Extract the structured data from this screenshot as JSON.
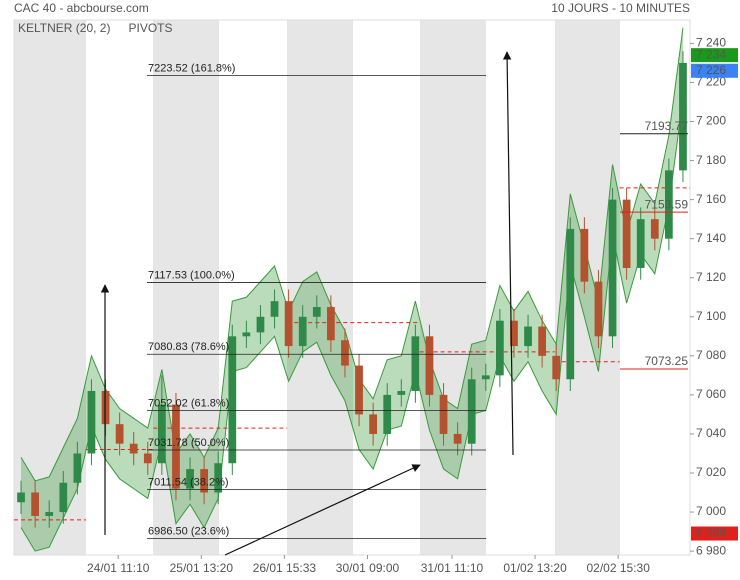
{
  "chart_data": {
    "type": "candlestick",
    "title": "CAC 40 - abcbourse.com",
    "subtitle": "10 JOURS - 10 MINUTES",
    "legend": [
      {
        "name": "KELTNER (20, 2)",
        "color": "#3a9a3a"
      },
      {
        "name": "PIVOTS",
        "color": "#555555"
      }
    ],
    "x": [
      0,
      1,
      2,
      3,
      4,
      5,
      6,
      7,
      8,
      9,
      10,
      11,
      12,
      13,
      14,
      15,
      16,
      17,
      18,
      19,
      20,
      21,
      22,
      23,
      24,
      25,
      26,
      27,
      28,
      29,
      30,
      31,
      32,
      33,
      34,
      35,
      36,
      37,
      38,
      39,
      40,
      41,
      42,
      43,
      44,
      45,
      46,
      47
    ],
    "open": [
      7005,
      7010,
      6998,
      7000,
      7015,
      7030,
      7062,
      7045,
      7035,
      7030,
      7025,
      7055,
      7012,
      7022,
      7010,
      7025,
      7090,
      7092,
      7100,
      7108,
      7085,
      7100,
      7105,
      7088,
      7075,
      7050,
      7040,
      7060,
      7062,
      7090,
      7060,
      7040,
      7035,
      7068,
      7070,
      7098,
      7085,
      7095,
      7080,
      7068,
      7145,
      7118,
      7090,
      7160,
      7125,
      7150,
      7140,
      7175
    ],
    "high": [
      7016,
      7016,
      7006,
      7021,
      7036,
      7068,
      7068,
      7051,
      7041,
      7036,
      7070,
      7061,
      7028,
      7028,
      7031,
      7096,
      7098,
      7106,
      7114,
      7114,
      7106,
      7111,
      7111,
      7094,
      7081,
      7056,
      7066,
      7068,
      7096,
      7096,
      7066,
      7046,
      7074,
      7076,
      7104,
      7104,
      7101,
      7101,
      7086,
      7151,
      7151,
      7124,
      7166,
      7166,
      7156,
      7156,
      7181,
      7236
    ],
    "low": [
      6999,
      6992,
      6992,
      6994,
      7009,
      7024,
      7039,
      7029,
      7024,
      7019,
      7019,
      7006,
      7006,
      7004,
      7004,
      7019,
      7084,
      7086,
      7094,
      7079,
      7079,
      7094,
      7082,
      7069,
      7044,
      7034,
      7034,
      7054,
      7056,
      7054,
      7034,
      7029,
      7029,
      7062,
      7064,
      7079,
      7079,
      7074,
      7062,
      7062,
      7112,
      7084,
      7084,
      7119,
      7119,
      7134,
      7134,
      7169
    ],
    "close": [
      7010,
      6998,
      7000,
      7015,
      7030,
      7062,
      7045,
      7035,
      7030,
      7025,
      7055,
      7012,
      7022,
      7010,
      7025,
      7090,
      7092,
      7100,
      7108,
      7085,
      7100,
      7105,
      7088,
      7075,
      7050,
      7040,
      7060,
      7062,
      7090,
      7060,
      7040,
      7035,
      7068,
      7070,
      7098,
      7085,
      7095,
      7080,
      7068,
      7145,
      7118,
      7090,
      7160,
      7125,
      7150,
      7140,
      7175,
      7230
    ],
    "up_color": "#2f8a4a",
    "down_color": "#b4512f",
    "keltner": {
      "color": "#3a9a3a",
      "upper": [
        7028,
        7016,
        7018,
        7033,
        7048,
        7080,
        7063,
        7053,
        7048,
        7043,
        7073,
        7030,
        7040,
        7028,
        7043,
        7108,
        7110,
        7118,
        7126,
        7103,
        7118,
        7123,
        7106,
        7093,
        7068,
        7058,
        7078,
        7080,
        7108,
        7078,
        7058,
        7053,
        7086,
        7088,
        7116,
        7103,
        7113,
        7098,
        7086,
        7163,
        7136,
        7108,
        7178,
        7143,
        7168,
        7158,
        7193,
        7248
      ],
      "lower": [
        6992,
        6980,
        6982,
        6997,
        7012,
        7044,
        7027,
        7017,
        7012,
        7007,
        7037,
        6994,
        7004,
        6992,
        7007,
        7072,
        7074,
        7082,
        7090,
        7067,
        7082,
        7087,
        7070,
        7057,
        7032,
        7022,
        7042,
        7044,
        7072,
        7042,
        7022,
        7017,
        7050,
        7052,
        7080,
        7067,
        7077,
        7062,
        7050,
        7127,
        7100,
        7072,
        7142,
        7107,
        7132,
        7122,
        7157,
        7212
      ]
    },
    "fibonacci": [
      {
        "value": 7223.52,
        "label": "7223.52  (161.8%)"
      },
      {
        "value": 7117.53,
        "label": "7117.53  (100.0%)"
      },
      {
        "value": 7080.83,
        "label": "7080.83  (78.6%)"
      },
      {
        "value": 7052.02,
        "label": "7052.02  (61.8%)"
      },
      {
        "value": 7031.78,
        "label": "7031.78  (50.0%)"
      },
      {
        "value": 7011.54,
        "label": "7011.54  (38.2%)"
      },
      {
        "value": 6986.5,
        "label": "6986.50  (23.6%)"
      }
    ],
    "pivot_segments": [
      {
        "x": [
          -0.5,
          4.6
        ],
        "value": 6996
      },
      {
        "x": [
          4.6,
          9.4
        ],
        "value": 7032
      },
      {
        "x": [
          9.4,
          18.9
        ],
        "value": 7043
      },
      {
        "x": [
          18.9,
          28.3
        ],
        "value": 7097
      },
      {
        "x": [
          28.3,
          37.9
        ],
        "value": 7082
      },
      {
        "x": [
          37.9,
          42.5
        ],
        "value": 7077
      },
      {
        "x": [
          42.5,
          47.5
        ],
        "value": 7166
      }
    ],
    "pivot_levels": {
      "values": [
        7193.77,
        7153.59,
        7073.25
      ],
      "colors": [
        "#222222",
        "#e0201b",
        "#e0201b"
      ]
    },
    "badges": [
      {
        "value": 7234,
        "label": "7 234",
        "color": "#1a9a1a"
      },
      {
        "value": 7226,
        "label": "7 226",
        "color": "#3b82f6"
      },
      {
        "value": 6989,
        "label": "6 989",
        "color": "#e0201b"
      }
    ],
    "xlim": [
      -0.5,
      47.5
    ],
    "xticks": [
      {
        "value": 6.9,
        "label": "24/01 11:10"
      },
      {
        "value": 12.8,
        "label": "25/01 13:20"
      },
      {
        "value": 18.7,
        "label": "26/01 15:33"
      },
      {
        "value": 24.6,
        "label": "30/01 09:00"
      },
      {
        "value": 30.6,
        "label": "31/01 11:10"
      },
      {
        "value": 36.5,
        "label": "01/02 13:20"
      },
      {
        "value": 42.4,
        "label": "02/02 15:30"
      }
    ],
    "ylim": [
      6978,
      7252
    ],
    "yticks": [
      {
        "value": 6980,
        "label": "6 980"
      },
      {
        "value": 7000,
        "label": "7 000"
      },
      {
        "value": 7020,
        "label": "7 020"
      },
      {
        "value": 7040,
        "label": "7 040"
      },
      {
        "value": 7060,
        "label": "7 060"
      },
      {
        "value": 7080,
        "label": "7 080"
      },
      {
        "value": 7100,
        "label": "7 100"
      },
      {
        "value": 7120,
        "label": "7 120"
      },
      {
        "value": 7140,
        "label": "7 140"
      },
      {
        "value": 7160,
        "label": "7 160"
      },
      {
        "value": 7180,
        "label": "7 180"
      },
      {
        "value": 7200,
        "label": "7 200"
      },
      {
        "value": 7220,
        "label": "7 220"
      },
      {
        "value": 7240,
        "label": "7 240"
      }
    ]
  }
}
